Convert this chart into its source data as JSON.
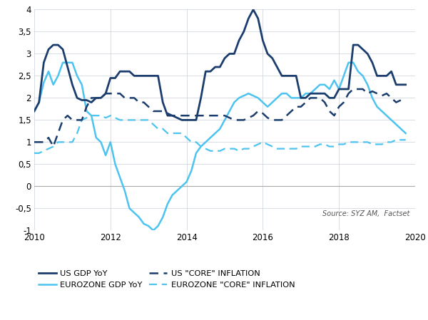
{
  "title": "",
  "source_text": "Source: SYZ AM,  Factset",
  "xlim": [
    2010,
    2020
  ],
  "ylim": [
    -1,
    4
  ],
  "ytick_labels": [
    "-1",
    "-0,5",
    "0",
    "0,5",
    "1",
    "1,5",
    "2",
    "2,5",
    "3",
    "3,5",
    "4"
  ],
  "xticks": [
    2010,
    2012,
    2014,
    2016,
    2018,
    2020
  ],
  "colors": {
    "us_gdp": "#1b3d6e",
    "ez_gdp": "#4dc3f0",
    "us_inf": "#1b3d6e",
    "ez_inf": "#4dc3f0"
  },
  "us_gdp_x": [
    2010.0,
    2010.125,
    2010.25,
    2010.375,
    2010.5,
    2010.625,
    2010.75,
    2010.875,
    2011.0,
    2011.125,
    2011.25,
    2011.375,
    2011.5,
    2011.625,
    2011.75,
    2011.875,
    2012.0,
    2012.125,
    2012.25,
    2012.375,
    2012.5,
    2012.625,
    2012.75,
    2012.875,
    2013.0,
    2013.125,
    2013.25,
    2013.375,
    2013.5,
    2013.625,
    2013.75,
    2013.875,
    2014.0,
    2014.125,
    2014.25,
    2014.375,
    2014.5,
    2014.625,
    2014.75,
    2014.875,
    2015.0,
    2015.125,
    2015.25,
    2015.375,
    2015.5,
    2015.625,
    2015.75,
    2015.875,
    2016.0,
    2016.125,
    2016.25,
    2016.375,
    2016.5,
    2016.625,
    2016.75,
    2016.875,
    2017.0,
    2017.125,
    2017.25,
    2017.375,
    2017.5,
    2017.625,
    2017.75,
    2017.875,
    2018.0,
    2018.125,
    2018.25,
    2018.375,
    2018.5,
    2018.625,
    2018.75,
    2018.875,
    2019.0,
    2019.125,
    2019.25,
    2019.375,
    2019.5,
    2019.625,
    2019.75
  ],
  "us_gdp_y": [
    1.7,
    1.9,
    2.8,
    3.1,
    3.2,
    3.2,
    3.1,
    2.7,
    2.3,
    2.0,
    1.95,
    1.95,
    1.9,
    2.0,
    2.0,
    2.1,
    2.45,
    2.45,
    2.6,
    2.6,
    2.6,
    2.5,
    2.5,
    2.5,
    2.5,
    2.5,
    2.5,
    1.9,
    1.6,
    1.6,
    1.55,
    1.5,
    1.5,
    1.5,
    1.5,
    2.0,
    2.6,
    2.6,
    2.7,
    2.7,
    2.9,
    3.0,
    3.0,
    3.3,
    3.5,
    3.8,
    4.0,
    3.8,
    3.3,
    3.0,
    2.9,
    2.7,
    2.5,
    2.5,
    2.5,
    2.5,
    2.0,
    2.0,
    2.1,
    2.1,
    2.1,
    2.1,
    2.0,
    2.0,
    2.2,
    2.2,
    2.2,
    3.2,
    3.2,
    3.1,
    3.0,
    2.8,
    2.5,
    2.5,
    2.5,
    2.6,
    2.3,
    2.3,
    2.3
  ],
  "ez_gdp_x": [
    2010.0,
    2010.125,
    2010.25,
    2010.375,
    2010.5,
    2010.625,
    2010.75,
    2010.875,
    2011.0,
    2011.125,
    2011.25,
    2011.375,
    2011.5,
    2011.625,
    2011.75,
    2011.875,
    2012.0,
    2012.125,
    2012.25,
    2012.375,
    2012.5,
    2012.625,
    2012.75,
    2012.875,
    2013.0,
    2013.125,
    2013.25,
    2013.375,
    2013.5,
    2013.625,
    2013.75,
    2013.875,
    2014.0,
    2014.125,
    2014.25,
    2014.375,
    2014.5,
    2014.625,
    2014.75,
    2014.875,
    2015.0,
    2015.125,
    2015.25,
    2015.375,
    2015.5,
    2015.625,
    2015.75,
    2015.875,
    2016.0,
    2016.125,
    2016.25,
    2016.375,
    2016.5,
    2016.625,
    2016.75,
    2016.875,
    2017.0,
    2017.125,
    2017.25,
    2017.375,
    2017.5,
    2017.625,
    2017.75,
    2017.875,
    2018.0,
    2018.125,
    2018.25,
    2018.375,
    2018.5,
    2018.625,
    2018.75,
    2018.875,
    2019.0,
    2019.125,
    2019.25,
    2019.375,
    2019.5,
    2019.625,
    2019.75
  ],
  "ez_gdp_y": [
    1.7,
    1.9,
    2.35,
    2.6,
    2.3,
    2.5,
    2.8,
    2.8,
    2.8,
    2.5,
    2.3,
    1.7,
    1.6,
    1.1,
    1.0,
    0.7,
    1.0,
    0.5,
    0.2,
    -0.1,
    -0.5,
    -0.6,
    -0.7,
    -0.85,
    -0.9,
    -1.0,
    -0.9,
    -0.7,
    -0.4,
    -0.2,
    -0.1,
    0.0,
    0.1,
    0.35,
    0.75,
    0.9,
    1.0,
    1.1,
    1.2,
    1.3,
    1.5,
    1.7,
    1.9,
    2.0,
    2.05,
    2.1,
    2.05,
    2.0,
    1.9,
    1.8,
    1.9,
    2.0,
    2.1,
    2.1,
    2.0,
    2.0,
    2.0,
    2.1,
    2.1,
    2.2,
    2.3,
    2.3,
    2.2,
    2.4,
    2.2,
    2.5,
    2.8,
    2.8,
    2.6,
    2.5,
    2.3,
    2.0,
    1.8,
    1.7,
    1.6,
    1.5,
    1.4,
    1.3,
    1.2
  ],
  "us_inf_x": [
    2010.0,
    2010.125,
    2010.25,
    2010.375,
    2010.5,
    2010.625,
    2010.75,
    2010.875,
    2011.0,
    2011.125,
    2011.25,
    2011.375,
    2011.5,
    2011.625,
    2011.75,
    2011.875,
    2012.0,
    2012.125,
    2012.25,
    2012.375,
    2012.5,
    2012.625,
    2012.75,
    2012.875,
    2013.0,
    2013.125,
    2013.25,
    2013.375,
    2013.5,
    2013.625,
    2013.75,
    2013.875,
    2014.0,
    2014.125,
    2014.25,
    2014.375,
    2014.5,
    2014.625,
    2014.75,
    2014.875,
    2015.0,
    2015.125,
    2015.25,
    2015.375,
    2015.5,
    2015.625,
    2015.75,
    2015.875,
    2016.0,
    2016.125,
    2016.25,
    2016.375,
    2016.5,
    2016.625,
    2016.75,
    2016.875,
    2017.0,
    2017.125,
    2017.25,
    2017.375,
    2017.5,
    2017.625,
    2017.75,
    2017.875,
    2018.0,
    2018.125,
    2018.25,
    2018.375,
    2018.5,
    2018.625,
    2018.75,
    2018.875,
    2019.0,
    2019.125,
    2019.25,
    2019.375,
    2019.5,
    2019.625,
    2019.75
  ],
  "us_inf_y": [
    1.0,
    1.0,
    1.0,
    1.1,
    0.9,
    1.2,
    1.5,
    1.6,
    1.5,
    1.5,
    1.5,
    1.8,
    2.0,
    2.0,
    2.0,
    2.1,
    2.1,
    2.1,
    2.1,
    2.0,
    2.0,
    2.0,
    1.9,
    1.9,
    1.8,
    1.7,
    1.7,
    1.7,
    1.65,
    1.6,
    1.6,
    1.6,
    1.6,
    1.6,
    1.6,
    1.6,
    1.6,
    1.6,
    1.6,
    1.6,
    1.6,
    1.55,
    1.5,
    1.5,
    1.5,
    1.55,
    1.6,
    1.7,
    1.65,
    1.55,
    1.5,
    1.5,
    1.5,
    1.6,
    1.7,
    1.8,
    1.8,
    1.9,
    2.0,
    2.0,
    2.0,
    1.9,
    1.7,
    1.6,
    1.8,
    1.9,
    2.1,
    2.2,
    2.2,
    2.2,
    2.1,
    2.15,
    2.1,
    2.05,
    2.1,
    2.0,
    1.9,
    1.95,
    2.0
  ],
  "ez_inf_x": [
    2010.0,
    2010.125,
    2010.25,
    2010.375,
    2010.5,
    2010.625,
    2010.75,
    2010.875,
    2011.0,
    2011.125,
    2011.25,
    2011.375,
    2011.5,
    2011.625,
    2011.75,
    2011.875,
    2012.0,
    2012.125,
    2012.25,
    2012.375,
    2012.5,
    2012.625,
    2012.75,
    2012.875,
    2013.0,
    2013.125,
    2013.25,
    2013.375,
    2013.5,
    2013.625,
    2013.75,
    2013.875,
    2014.0,
    2014.125,
    2014.25,
    2014.375,
    2014.5,
    2014.625,
    2014.75,
    2014.875,
    2015.0,
    2015.125,
    2015.25,
    2015.375,
    2015.5,
    2015.625,
    2015.75,
    2015.875,
    2016.0,
    2016.125,
    2016.25,
    2016.375,
    2016.5,
    2016.625,
    2016.75,
    2016.875,
    2017.0,
    2017.125,
    2017.25,
    2017.375,
    2017.5,
    2017.625,
    2017.75,
    2017.875,
    2018.0,
    2018.125,
    2018.25,
    2018.375,
    2018.5,
    2018.625,
    2018.75,
    2018.875,
    2019.0,
    2019.125,
    2019.25,
    2019.375,
    2019.5,
    2019.625,
    2019.75
  ],
  "ez_inf_y": [
    0.75,
    0.75,
    0.8,
    0.85,
    0.9,
    1.0,
    1.0,
    1.0,
    1.0,
    1.2,
    1.5,
    1.55,
    1.6,
    1.6,
    1.6,
    1.55,
    1.6,
    1.55,
    1.5,
    1.5,
    1.5,
    1.5,
    1.5,
    1.5,
    1.5,
    1.4,
    1.3,
    1.3,
    1.2,
    1.2,
    1.2,
    1.2,
    1.1,
    1.0,
    1.0,
    0.9,
    0.85,
    0.8,
    0.8,
    0.8,
    0.85,
    0.85,
    0.85,
    0.8,
    0.85,
    0.85,
    0.9,
    0.95,
    1.0,
    0.95,
    0.9,
    0.85,
    0.85,
    0.85,
    0.85,
    0.85,
    0.9,
    0.9,
    0.9,
    0.9,
    0.95,
    0.95,
    0.9,
    0.9,
    0.95,
    0.95,
    1.0,
    1.0,
    1.0,
    1.0,
    1.0,
    0.95,
    0.95,
    0.95,
    1.0,
    1.0,
    1.05,
    1.05,
    1.05
  ],
  "background_color": "#ffffff",
  "grid_color": "#c8d0d8",
  "legend_items": [
    {
      "label": "US GDP YoY",
      "color": "#1b3d6e",
      "linestyle": "solid"
    },
    {
      "label": "EUROZONE GDP YoY",
      "color": "#4dc3f0",
      "linestyle": "solid"
    },
    {
      "label": "US \"CORE\" INFLATION",
      "color": "#1b3d6e",
      "linestyle": "dashed"
    },
    {
      "label": "EUROZONE \"CORE\" INFLATION",
      "color": "#4dc3f0",
      "linestyle": "dashed"
    }
  ]
}
